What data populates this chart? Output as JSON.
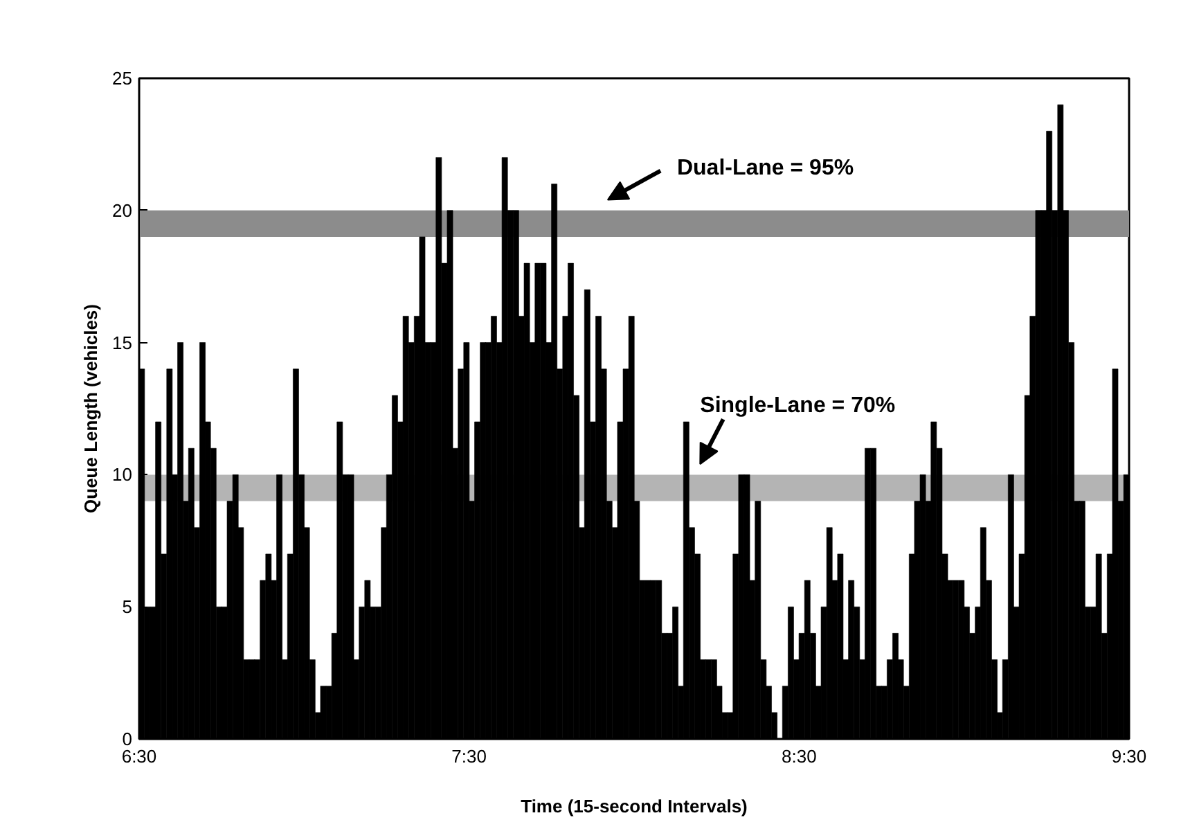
{
  "chart_data": {
    "type": "bar",
    "xlabel": "Time (15-second Intervals)",
    "ylabel": "Queue Length (vehicles)",
    "x": [
      6.508,
      6.525,
      6.542,
      6.558,
      6.575,
      6.592,
      6.608,
      6.625,
      6.642,
      6.658,
      6.675,
      6.692,
      6.708,
      6.725,
      6.742,
      6.758,
      6.775,
      6.792,
      6.808,
      6.825,
      6.842,
      6.858,
      6.875,
      6.892,
      6.908,
      6.925,
      6.942,
      6.958,
      6.975,
      6.992,
      7.008,
      7.025,
      7.042,
      7.058,
      7.075,
      7.092,
      7.108,
      7.125,
      7.142,
      7.158,
      7.175,
      7.192,
      7.208,
      7.225,
      7.242,
      7.258,
      7.275,
      7.292,
      7.308,
      7.325,
      7.342,
      7.358,
      7.375,
      7.392,
      7.408,
      7.425,
      7.442,
      7.458,
      7.475,
      7.492,
      7.508,
      7.525,
      7.542,
      7.558,
      7.575,
      7.592,
      7.608,
      7.625,
      7.642,
      7.658,
      7.675,
      7.692,
      7.708,
      7.725,
      7.742,
      7.758,
      7.775,
      7.792,
      7.808,
      7.825,
      7.842,
      7.858,
      7.875,
      7.892,
      7.908,
      7.925,
      7.942,
      7.958,
      7.975,
      7.992,
      8.008,
      8.025,
      8.042,
      8.058,
      8.075,
      8.092,
      8.108,
      8.125,
      8.142,
      8.158,
      8.175,
      8.192,
      8.208,
      8.225,
      8.242,
      8.258,
      8.275,
      8.292,
      8.308,
      8.325,
      8.342,
      8.358,
      8.375,
      8.392,
      8.408,
      8.425,
      8.442,
      8.458,
      8.475,
      8.492,
      8.508,
      8.525,
      8.542,
      8.558,
      8.575,
      8.592,
      8.608,
      8.625,
      8.642,
      8.658,
      8.675,
      8.692,
      8.708,
      8.725,
      8.742,
      8.758,
      8.775,
      8.792,
      8.808,
      8.825,
      8.842,
      8.858,
      8.875,
      8.892,
      8.908,
      8.925,
      8.942,
      8.958,
      8.975,
      8.992,
      9.008,
      9.025,
      9.042,
      9.058,
      9.075,
      9.092,
      9.108,
      9.125,
      9.142,
      9.158,
      9.175,
      9.192,
      9.208,
      9.225,
      9.242,
      9.258,
      9.275,
      9.292,
      9.308,
      9.325,
      9.342,
      9.358,
      9.375,
      9.392,
      9.408,
      9.425,
      9.442,
      9.458,
      9.475,
      9.492
    ],
    "values": [
      14,
      5,
      5,
      12,
      7,
      14,
      10,
      15,
      9,
      11,
      8,
      15,
      12,
      11,
      5,
      5,
      9,
      10,
      8,
      3,
      3,
      3,
      6,
      7,
      6,
      10,
      3,
      7,
      14,
      10,
      8,
      3,
      1,
      2,
      2,
      4,
      12,
      10,
      10,
      3,
      5,
      6,
      5,
      5,
      8,
      10,
      13,
      12,
      16,
      15,
      16,
      19,
      15,
      15,
      22,
      18,
      20,
      11,
      14,
      15,
      9,
      12,
      15,
      15,
      16,
      15,
      22,
      20,
      20,
      16,
      18,
      15,
      18,
      18,
      15,
      21,
      14,
      16,
      18,
      13,
      8,
      17,
      12,
      16,
      14,
      9,
      8,
      12,
      14,
      16,
      9,
      6,
      6,
      6,
      6,
      4,
      4,
      5,
      2,
      12,
      8,
      7,
      3,
      3,
      3,
      2,
      1,
      1,
      7,
      10,
      10,
      6,
      9,
      3,
      2,
      1,
      0,
      2,
      5,
      3,
      4,
      6,
      4,
      2,
      5,
      8,
      6,
      7,
      3,
      6,
      5,
      3,
      11,
      11,
      2,
      2,
      3,
      4,
      3,
      2,
      7,
      9,
      10,
      9,
      12,
      11,
      7,
      6,
      6,
      6,
      5,
      4,
      5,
      8,
      6,
      3,
      1,
      3,
      10,
      5,
      7,
      13,
      16,
      20,
      20,
      23,
      20,
      24,
      20,
      15,
      9,
      9,
      5,
      5,
      7,
      4,
      7,
      14,
      9,
      10
    ],
    "color": "#000000",
    "xlim": [
      6.5,
      9.5
    ],
    "ylim": [
      0,
      25
    ],
    "xticks": [
      {
        "value": 6.5,
        "label": "6:30"
      },
      {
        "value": 7,
        "label": null
      },
      {
        "value": 7.5,
        "label": "7:30"
      },
      {
        "value": 8,
        "label": null
      },
      {
        "value": 8.5,
        "label": "8:30"
      },
      {
        "value": 9,
        "label": null
      },
      {
        "value": 9.5,
        "label": "9:30"
      }
    ],
    "yticks": [
      0,
      5,
      10,
      15,
      20,
      25
    ],
    "bands": [
      {
        "axis": "y",
        "from": 19,
        "to": 20,
        "label": "Dual-Lane = 95%",
        "color": "#8c8c8c"
      },
      {
        "axis": "y",
        "from": 9,
        "to": 10,
        "label": "Single-Lane = 70%",
        "color": "#b4b4b4"
      }
    ],
    "grid": false
  }
}
